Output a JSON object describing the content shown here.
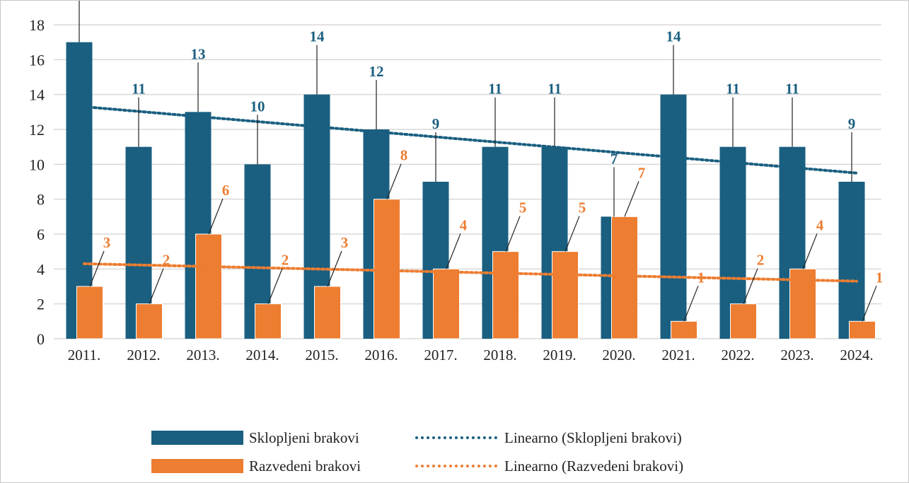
{
  "chart_data": {
    "type": "bar",
    "categories": [
      "2011.",
      "2012.",
      "2013.",
      "2014.",
      "2015.",
      "2016.",
      "2017.",
      "2018.",
      "2019.",
      "2020.",
      "2021.",
      "2022.",
      "2023.",
      "2024."
    ],
    "series": [
      {
        "name": "Sklopljeni brakovi",
        "color": "#1a5f80",
        "values": [
          17,
          11,
          13,
          10,
          14,
          12,
          9,
          11,
          11,
          7,
          14,
          11,
          11,
          9
        ],
        "labels": [
          "",
          "11",
          "13",
          "10",
          "14",
          "12",
          "9",
          "11",
          "11",
          "7",
          "14",
          "11",
          "11",
          "9"
        ]
      },
      {
        "name": "Razvedeni brakovi",
        "color": "#ed7d31",
        "values": [
          3,
          2,
          6,
          2,
          3,
          8,
          4,
          5,
          5,
          7,
          1,
          2,
          4,
          1
        ],
        "labels": [
          "3",
          "2",
          "6",
          "2",
          "3",
          "8",
          "4",
          "5",
          "5",
          "7",
          "1",
          "2",
          "4",
          "1"
        ]
      }
    ],
    "trendlines": [
      {
        "name": "Linearno (Sklopljeni brakovi)",
        "color": "#1a5f80",
        "start": 13.3,
        "end": 9.5
      },
      {
        "name": "Linearno (Razvedeni brakovi)",
        "color": "#ed7d31",
        "start": 4.3,
        "end": 3.3
      }
    ],
    "yticks": [
      "0",
      "2",
      "4",
      "6",
      "8",
      "10",
      "12",
      "14",
      "16",
      "18"
    ],
    "ylim": [
      0,
      18
    ],
    "grid": true,
    "legend_position": "bottom"
  }
}
